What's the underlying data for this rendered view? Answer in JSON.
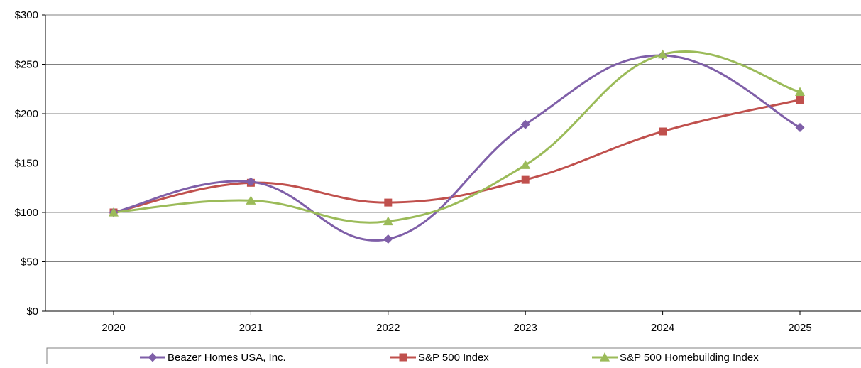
{
  "chart_data": {
    "type": "line",
    "categories": [
      "2020",
      "2021",
      "2022",
      "2023",
      "2024",
      "2025"
    ],
    "series": [
      {
        "name": "Beazer Homes USA, Inc.",
        "values": [
          100,
          131,
          73,
          189,
          259,
          186
        ],
        "color": "#7f5fa8",
        "marker": "diamond"
      },
      {
        "name": "S&P 500 Index",
        "values": [
          100,
          130,
          110,
          133,
          182,
          214
        ],
        "color": "#c0504d",
        "marker": "square"
      },
      {
        "name": "S&P 500 Homebuilding Index",
        "values": [
          100,
          112,
          91,
          148,
          260,
          222
        ],
        "color": "#9bbb59",
        "marker": "triangle"
      }
    ],
    "yticks": [
      "$0",
      "$50",
      "$100",
      "$150",
      "$200",
      "$250",
      "$300"
    ],
    "ylim": [
      0,
      300
    ],
    "grid": true,
    "legend_position": "bottom",
    "title": "",
    "xlabel": "",
    "ylabel": ""
  }
}
